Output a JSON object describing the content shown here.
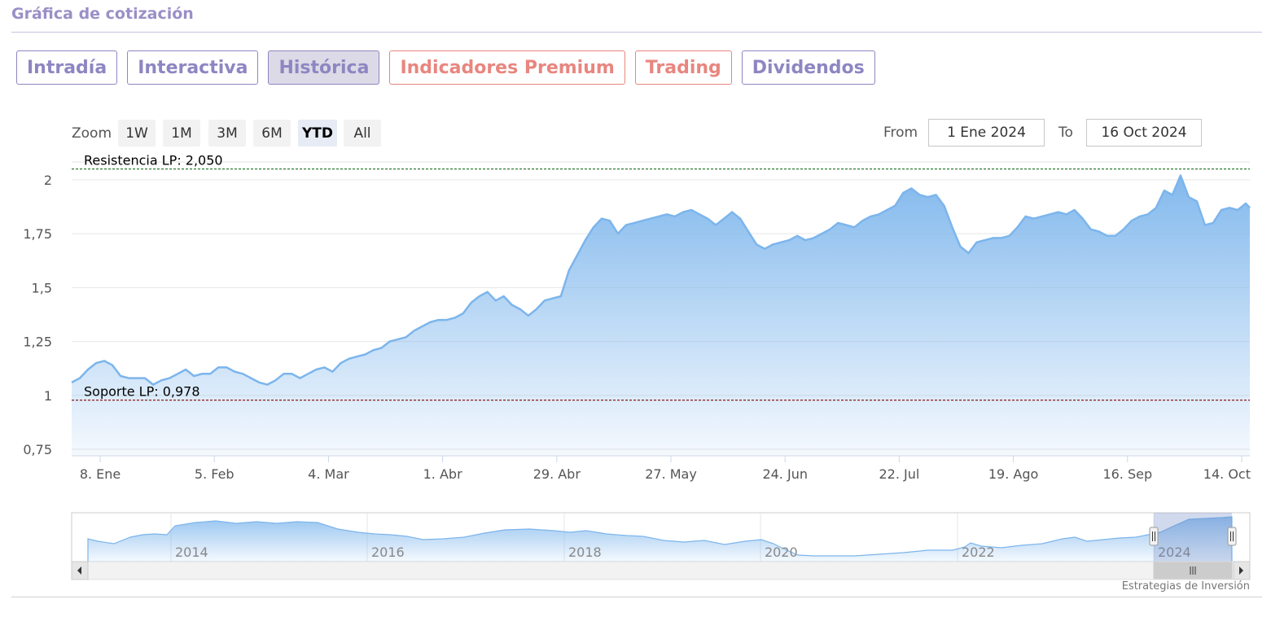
{
  "section": {
    "title": "Gráfica de cotización"
  },
  "tabs": [
    {
      "label": "Intradía",
      "style": "purple"
    },
    {
      "label": "Interactiva",
      "style": "purple"
    },
    {
      "label": "Histórica",
      "style": "purple",
      "active": true
    },
    {
      "label": "Indicadores Premium",
      "style": "red"
    },
    {
      "label": "Trading",
      "style": "red"
    },
    {
      "label": "Dividendos",
      "style": "purple"
    }
  ],
  "range_selector": {
    "zoom_label": "Zoom",
    "buttons": [
      "1W",
      "1M",
      "3M",
      "6M",
      "YTD",
      "All"
    ],
    "selected": "YTD",
    "from_label": "From",
    "from_value": "1 Ene 2024",
    "to_label": "To",
    "to_value": "16 Oct 2024"
  },
  "colors": {
    "accent_purple": "#8e86c2",
    "accent_red": "#e8867f",
    "series": "#7cb5ec",
    "resistance": "#2e7d32",
    "support": "#8b1a1a"
  },
  "chart_data": {
    "type": "area",
    "ylim": [
      0.72,
      2.06
    ],
    "yticks": [
      {
        "value": 0.75,
        "label": "0,75"
      },
      {
        "value": 1,
        "label": "1"
      },
      {
        "value": 1.25,
        "label": "1,25"
      },
      {
        "value": 1.5,
        "label": "1,5"
      },
      {
        "value": 1.75,
        "label": "1,75"
      },
      {
        "value": 2,
        "label": "2"
      }
    ],
    "xlim": [
      "2024-01-01",
      "2024-10-16"
    ],
    "xticks": [
      {
        "date": "2024-01-08",
        "label": "8. Ene"
      },
      {
        "date": "2024-02-05",
        "label": "5. Feb"
      },
      {
        "date": "2024-03-04",
        "label": "4. Mar"
      },
      {
        "date": "2024-04-01",
        "label": "1. Abr"
      },
      {
        "date": "2024-04-29",
        "label": "29. Abr"
      },
      {
        "date": "2024-05-27",
        "label": "27. May"
      },
      {
        "date": "2024-06-24",
        "label": "24. Jun"
      },
      {
        "date": "2024-07-22",
        "label": "22. Jul"
      },
      {
        "date": "2024-08-19",
        "label": "19. Ago"
      },
      {
        "date": "2024-09-16",
        "label": "16. Sep"
      },
      {
        "date": "2024-10-14",
        "label": "14. Oct"
      }
    ],
    "series": [
      {
        "points": [
          [
            "2024-01-01",
            1.06
          ],
          [
            "2024-01-03",
            1.08
          ],
          [
            "2024-01-05",
            1.12
          ],
          [
            "2024-01-07",
            1.15
          ],
          [
            "2024-01-09",
            1.16
          ],
          [
            "2024-01-11",
            1.14
          ],
          [
            "2024-01-13",
            1.09
          ],
          [
            "2024-01-15",
            1.08
          ],
          [
            "2024-01-17",
            1.08
          ],
          [
            "2024-01-19",
            1.08
          ],
          [
            "2024-01-21",
            1.05
          ],
          [
            "2024-01-23",
            1.07
          ],
          [
            "2024-01-25",
            1.08
          ],
          [
            "2024-01-27",
            1.1
          ],
          [
            "2024-01-29",
            1.12
          ],
          [
            "2024-01-31",
            1.09
          ],
          [
            "2024-02-02",
            1.1
          ],
          [
            "2024-02-04",
            1.1
          ],
          [
            "2024-02-06",
            1.13
          ],
          [
            "2024-02-08",
            1.13
          ],
          [
            "2024-02-10",
            1.11
          ],
          [
            "2024-02-12",
            1.1
          ],
          [
            "2024-02-14",
            1.08
          ],
          [
            "2024-02-16",
            1.06
          ],
          [
            "2024-02-18",
            1.05
          ],
          [
            "2024-02-20",
            1.07
          ],
          [
            "2024-02-22",
            1.1
          ],
          [
            "2024-02-24",
            1.1
          ],
          [
            "2024-02-26",
            1.08
          ],
          [
            "2024-02-28",
            1.1
          ],
          [
            "2024-03-01",
            1.12
          ],
          [
            "2024-03-03",
            1.13
          ],
          [
            "2024-03-05",
            1.11
          ],
          [
            "2024-03-07",
            1.15
          ],
          [
            "2024-03-09",
            1.17
          ],
          [
            "2024-03-11",
            1.18
          ],
          [
            "2024-03-13",
            1.19
          ],
          [
            "2024-03-15",
            1.21
          ],
          [
            "2024-03-17",
            1.22
          ],
          [
            "2024-03-19",
            1.25
          ],
          [
            "2024-03-21",
            1.26
          ],
          [
            "2024-03-23",
            1.27
          ],
          [
            "2024-03-25",
            1.3
          ],
          [
            "2024-03-27",
            1.32
          ],
          [
            "2024-03-29",
            1.34
          ],
          [
            "2024-03-31",
            1.35
          ],
          [
            "2024-04-02",
            1.35
          ],
          [
            "2024-04-04",
            1.36
          ],
          [
            "2024-04-06",
            1.38
          ],
          [
            "2024-04-08",
            1.43
          ],
          [
            "2024-04-10",
            1.46
          ],
          [
            "2024-04-12",
            1.48
          ],
          [
            "2024-04-14",
            1.44
          ],
          [
            "2024-04-16",
            1.46
          ],
          [
            "2024-04-18",
            1.42
          ],
          [
            "2024-04-20",
            1.4
          ],
          [
            "2024-04-22",
            1.37
          ],
          [
            "2024-04-24",
            1.4
          ],
          [
            "2024-04-26",
            1.44
          ],
          [
            "2024-04-28",
            1.45
          ],
          [
            "2024-04-30",
            1.46
          ],
          [
            "2024-05-02",
            1.58
          ],
          [
            "2024-05-04",
            1.65
          ],
          [
            "2024-05-06",
            1.72
          ],
          [
            "2024-05-08",
            1.78
          ],
          [
            "2024-05-10",
            1.82
          ],
          [
            "2024-05-12",
            1.81
          ],
          [
            "2024-05-14",
            1.75
          ],
          [
            "2024-05-16",
            1.79
          ],
          [
            "2024-05-18",
            1.8
          ],
          [
            "2024-05-20",
            1.81
          ],
          [
            "2024-05-22",
            1.82
          ],
          [
            "2024-05-24",
            1.83
          ],
          [
            "2024-05-26",
            1.84
          ],
          [
            "2024-05-28",
            1.83
          ],
          [
            "2024-05-30",
            1.85
          ],
          [
            "2024-06-01",
            1.86
          ],
          [
            "2024-06-03",
            1.84
          ],
          [
            "2024-06-05",
            1.82
          ],
          [
            "2024-06-07",
            1.79
          ],
          [
            "2024-06-09",
            1.82
          ],
          [
            "2024-06-11",
            1.85
          ],
          [
            "2024-06-13",
            1.82
          ],
          [
            "2024-06-15",
            1.76
          ],
          [
            "2024-06-17",
            1.7
          ],
          [
            "2024-06-19",
            1.68
          ],
          [
            "2024-06-21",
            1.7
          ],
          [
            "2024-06-23",
            1.71
          ],
          [
            "2024-06-25",
            1.72
          ],
          [
            "2024-06-27",
            1.74
          ],
          [
            "2024-06-29",
            1.72
          ],
          [
            "2024-07-01",
            1.73
          ],
          [
            "2024-07-03",
            1.75
          ],
          [
            "2024-07-05",
            1.77
          ],
          [
            "2024-07-07",
            1.8
          ],
          [
            "2024-07-09",
            1.79
          ],
          [
            "2024-07-11",
            1.78
          ],
          [
            "2024-07-13",
            1.81
          ],
          [
            "2024-07-15",
            1.83
          ],
          [
            "2024-07-17",
            1.84
          ],
          [
            "2024-07-19",
            1.86
          ],
          [
            "2024-07-21",
            1.88
          ],
          [
            "2024-07-23",
            1.94
          ],
          [
            "2024-07-25",
            1.96
          ],
          [
            "2024-07-27",
            1.93
          ],
          [
            "2024-07-29",
            1.92
          ],
          [
            "2024-07-31",
            1.93
          ],
          [
            "2024-08-02",
            1.88
          ],
          [
            "2024-08-04",
            1.78
          ],
          [
            "2024-08-06",
            1.69
          ],
          [
            "2024-08-08",
            1.66
          ],
          [
            "2024-08-10",
            1.71
          ],
          [
            "2024-08-12",
            1.72
          ],
          [
            "2024-08-14",
            1.73
          ],
          [
            "2024-08-16",
            1.73
          ],
          [
            "2024-08-18",
            1.74
          ],
          [
            "2024-08-20",
            1.78
          ],
          [
            "2024-08-22",
            1.83
          ],
          [
            "2024-08-24",
            1.82
          ],
          [
            "2024-08-26",
            1.83
          ],
          [
            "2024-08-28",
            1.84
          ],
          [
            "2024-08-30",
            1.85
          ],
          [
            "2024-09-01",
            1.84
          ],
          [
            "2024-09-03",
            1.86
          ],
          [
            "2024-09-05",
            1.82
          ],
          [
            "2024-09-07",
            1.77
          ],
          [
            "2024-09-09",
            1.76
          ],
          [
            "2024-09-11",
            1.74
          ],
          [
            "2024-09-13",
            1.74
          ],
          [
            "2024-09-15",
            1.77
          ],
          [
            "2024-09-17",
            1.81
          ],
          [
            "2024-09-19",
            1.83
          ],
          [
            "2024-09-21",
            1.84
          ],
          [
            "2024-09-23",
            1.87
          ],
          [
            "2024-09-25",
            1.95
          ],
          [
            "2024-09-27",
            1.93
          ],
          [
            "2024-09-29",
            2.02
          ],
          [
            "2024-10-01",
            1.92
          ],
          [
            "2024-10-03",
            1.9
          ],
          [
            "2024-10-05",
            1.79
          ],
          [
            "2024-10-07",
            1.8
          ],
          [
            "2024-10-09",
            1.86
          ],
          [
            "2024-10-11",
            1.87
          ],
          [
            "2024-10-13",
            1.86
          ],
          [
            "2024-10-15",
            1.89
          ],
          [
            "2024-10-16",
            1.87
          ]
        ]
      }
    ],
    "plot_lines": [
      {
        "label": "Resistencia LP: 2,050",
        "value": 2.05,
        "style": "dashed"
      },
      {
        "label": "Soporte LP: 0,978",
        "value": 0.978,
        "style": "dashed"
      }
    ],
    "navigator": {
      "year_labels": [
        "2014",
        "2016",
        "2018",
        "2020",
        "2022",
        "2024"
      ]
    },
    "credits": "Estrategias de Inversión"
  }
}
